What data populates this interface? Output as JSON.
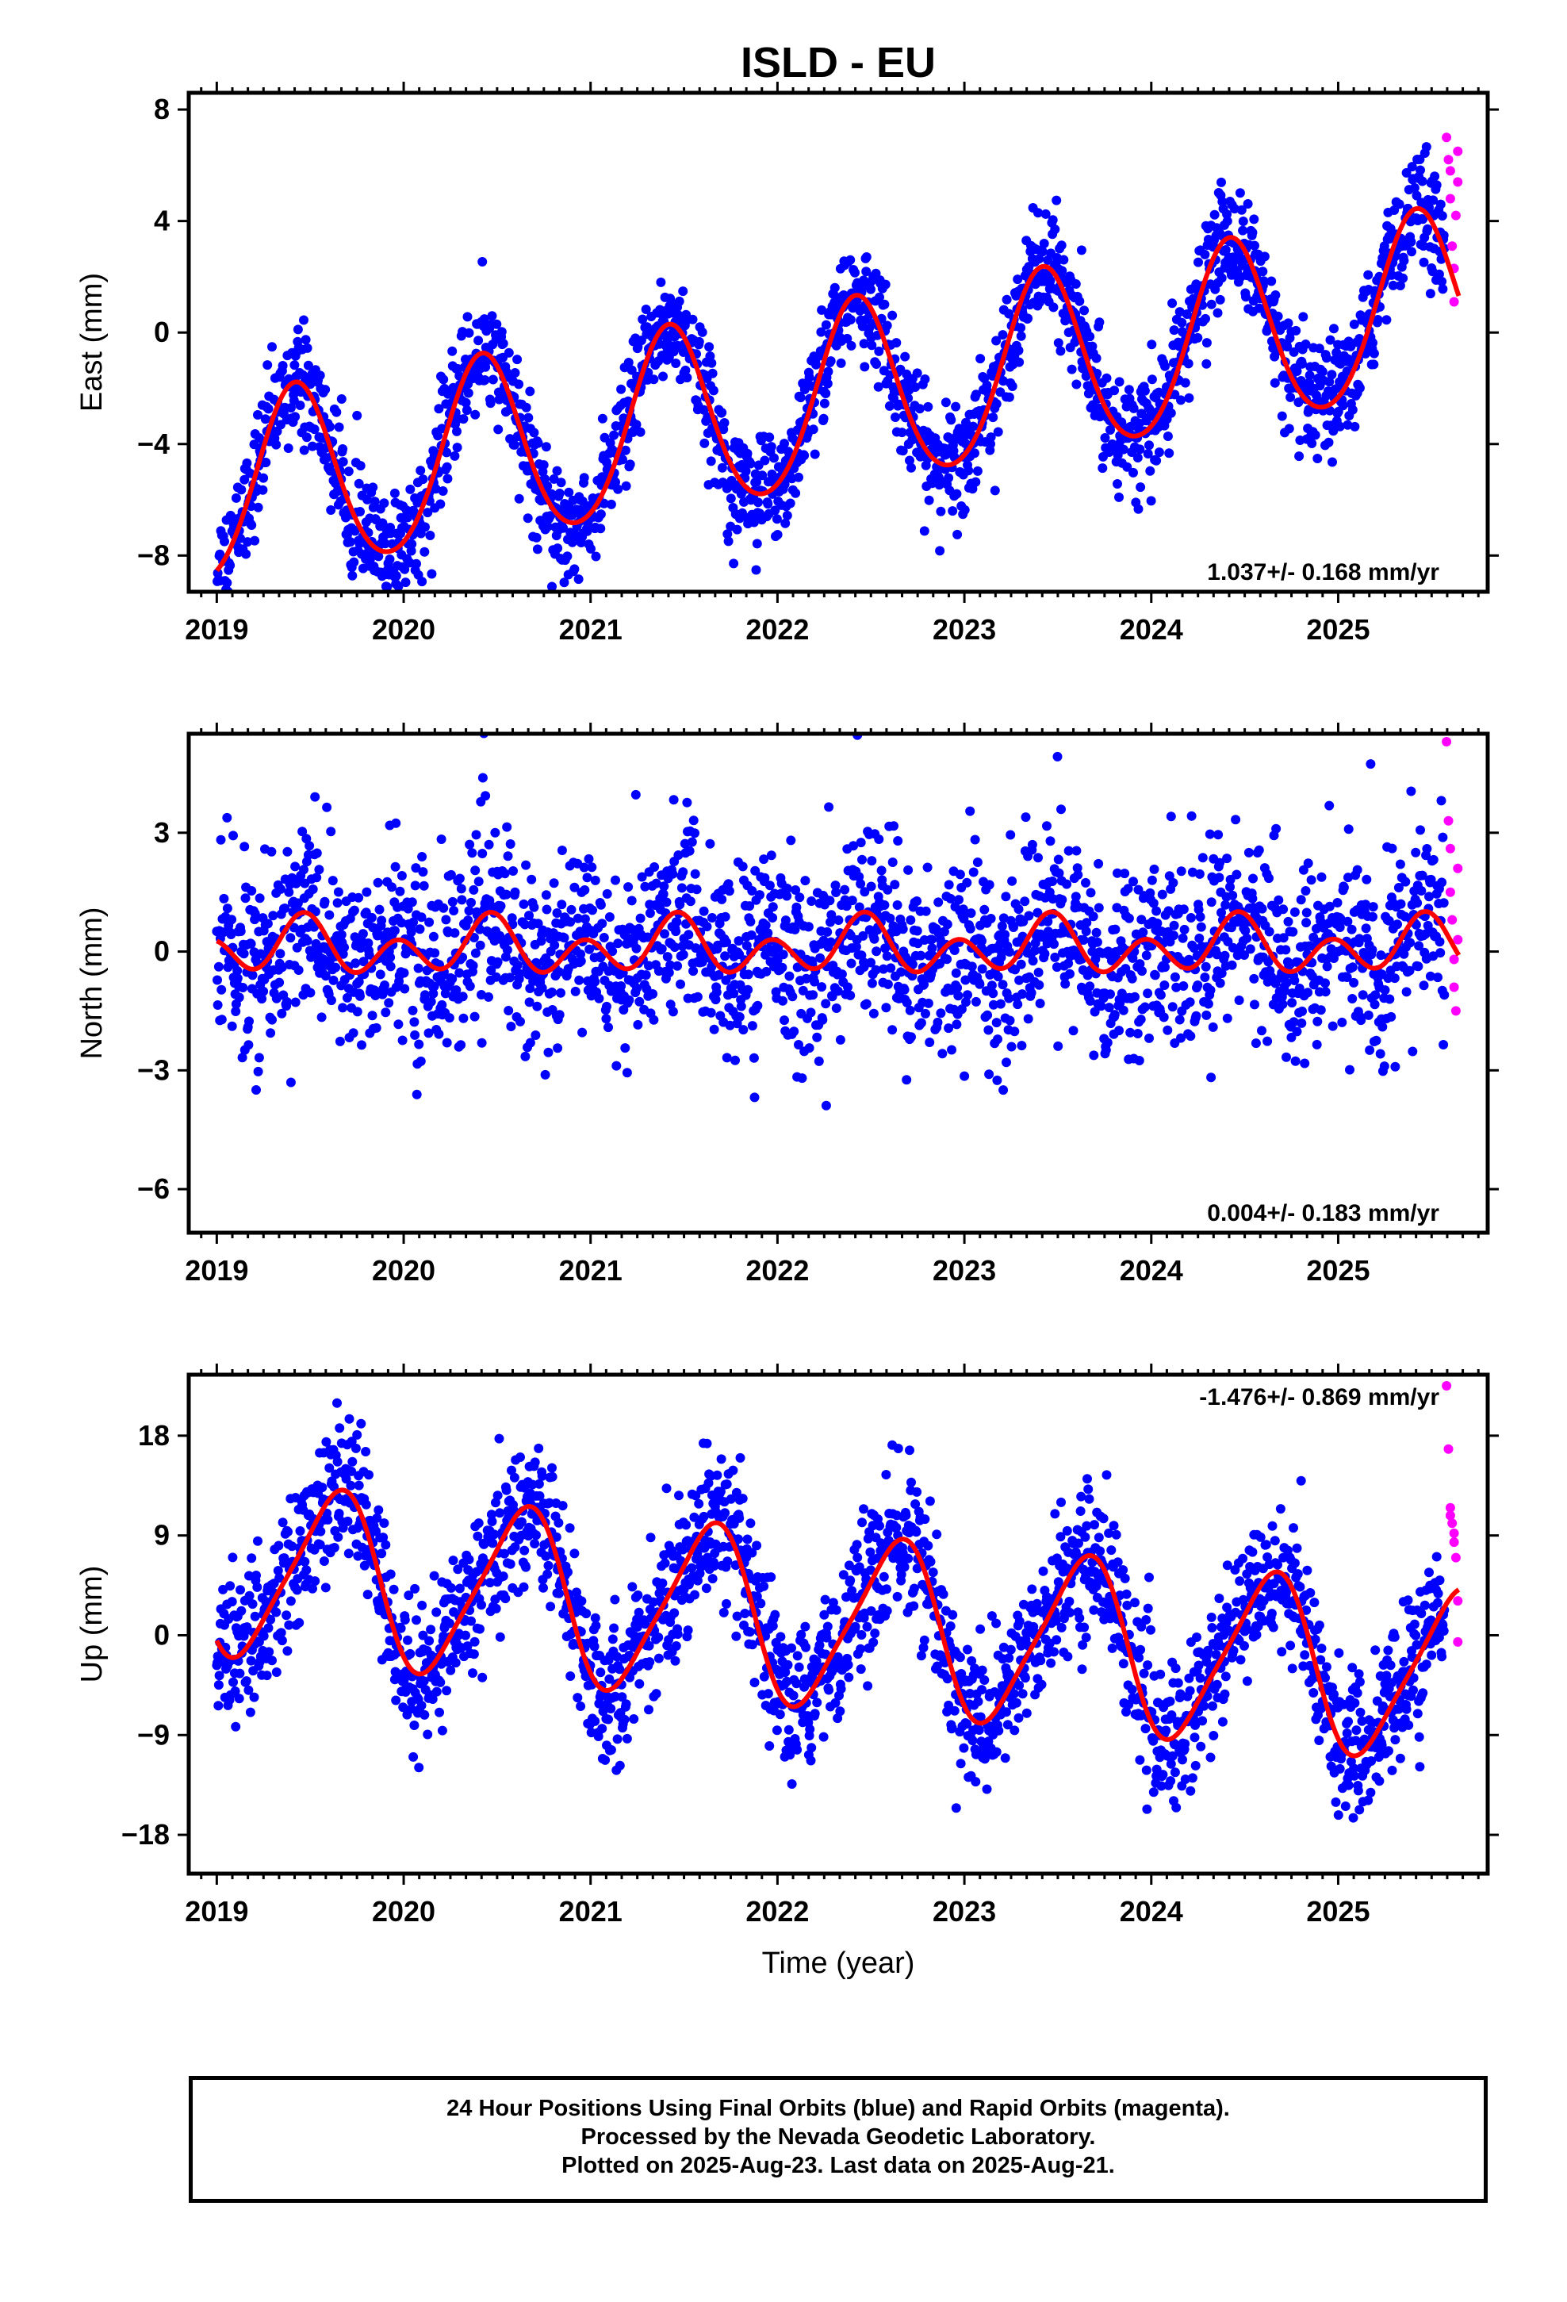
{
  "title": "ISLD - EU",
  "xlabel": "Time (year)",
  "colors": {
    "final": "#0000ff",
    "rapid": "#ff00ff",
    "model": "#ff0000",
    "frame": "#000000"
  },
  "caption": {
    "line1": "24 Hour Positions Using Final Orbits (blue) and Rapid Orbits (magenta).",
    "line2": "Processed by the Nevada Geodetic Laboratory.",
    "line3": "Plotted on 2025-Aug-23. Last data on 2025-Aug-21."
  },
  "chart_data": [
    {
      "type": "scatter",
      "ylabel": "East (mm)",
      "rate_label": "1.037+/- 0.168 mm/yr",
      "xlim": [
        2018.85,
        2025.8
      ],
      "ylim": [
        -9.3,
        8.6
      ],
      "xticks": [
        2019,
        2020,
        2021,
        2022,
        2023,
        2024,
        2025
      ],
      "yticks": [
        -8,
        -4,
        0,
        4,
        8
      ],
      "model": {
        "offset": -2.7,
        "trend": 1.037,
        "ref_year": 2022.0,
        "annual_amp": 3.3,
        "annual_peak": 2019.42,
        "semiannual_amp": 0.3,
        "semiannual_peak": 2019.42
      },
      "scatter_sd": 1.0,
      "rapid_points": {
        "x": [
          2025.58,
          2025.59,
          2025.6,
          2025.6,
          2025.61,
          2025.62,
          2025.62,
          2025.63,
          2025.64,
          2025.64
        ],
        "y": [
          7.0,
          6.2,
          5.8,
          4.8,
          3.1,
          1.1,
          2.3,
          4.2,
          5.4,
          6.5
        ]
      }
    },
    {
      "type": "scatter",
      "ylabel": "North (mm)",
      "rate_label": "0.004+/- 0.183 mm/yr",
      "xlim": [
        2018.85,
        2025.8
      ],
      "ylim": [
        -7.1,
        5.5
      ],
      "xticks": [
        2019,
        2020,
        2021,
        2022,
        2023,
        2024,
        2025
      ],
      "yticks": [
        -6,
        -3,
        0,
        3
      ],
      "model": {
        "offset": 0.1,
        "trend": 0.004,
        "ref_year": 2022.0,
        "annual_amp": 0.35,
        "annual_peak": 2019.45,
        "semiannual_amp": 0.55,
        "semiannual_peak": 2019.47
      },
      "scatter_sd": 1.2,
      "rapid_points": {
        "x": [
          2025.58,
          2025.59,
          2025.6,
          2025.6,
          2025.61,
          2025.62,
          2025.62,
          2025.63,
          2025.64,
          2025.64
        ],
        "y": [
          5.3,
          3.3,
          2.6,
          1.5,
          0.8,
          -0.2,
          -0.9,
          -1.5,
          0.3,
          2.1
        ]
      }
    },
    {
      "type": "scatter",
      "ylabel": "Up (mm)",
      "rate_label": "-1.476+/- 0.869 mm/yr",
      "xlim": [
        2018.85,
        2025.8
      ],
      "ylim": [
        -21.5,
        23.5
      ],
      "xticks": [
        2019,
        2020,
        2021,
        2022,
        2023,
        2024,
        2025
      ],
      "yticks": [
        -18,
        -9,
        0,
        9,
        18
      ],
      "model": {
        "offset": 1.6,
        "trend": -1.476,
        "ref_year": 2022.0,
        "annual_amp": 7.6,
        "annual_peak": 2019.63,
        "semiannual_amp": 1.3,
        "semiannual_peak": 2019.75
      },
      "scatter_sd": 3.3,
      "rapid_points": {
        "x": [
          2025.58,
          2025.59,
          2025.6,
          2025.6,
          2025.61,
          2025.62,
          2025.62,
          2025.63,
          2025.64,
          2025.64
        ],
        "y": [
          22.5,
          16.8,
          11.5,
          10.8,
          10.1,
          9.2,
          8.4,
          7.0,
          3.1,
          -0.6
        ]
      }
    }
  ]
}
